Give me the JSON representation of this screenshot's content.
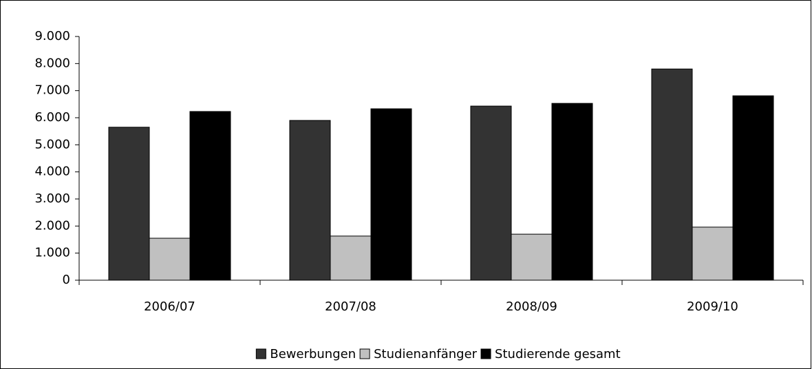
{
  "chart_data": {
    "type": "bar",
    "categories": [
      "2006/07",
      "2007/08",
      "2008/09",
      "2009/10"
    ],
    "series": [
      {
        "name": "Bewerbungen",
        "color": "#333333",
        "values": [
          5650,
          5900,
          6430,
          7800
        ]
      },
      {
        "name": "Studienanfänger",
        "color": "#c0c0c0",
        "values": [
          1550,
          1630,
          1700,
          1960
        ]
      },
      {
        "name": "Studierende gesamt",
        "color": "#000000",
        "values": [
          6230,
          6330,
          6530,
          6810
        ]
      }
    ],
    "ylim": [
      0,
      9000
    ],
    "yticks": [
      0,
      {
        "value": 1000,
        "label": "1.000"
      },
      {
        "value": 2000,
        "label": "2.000"
      },
      {
        "value": 3000,
        "label": "3.000"
      },
      {
        "value": 4000,
        "label": "4.000"
      },
      {
        "value": 5000,
        "label": "5.000"
      },
      {
        "value": 6000,
        "label": "6.000"
      },
      {
        "value": 7000,
        "label": "7.000"
      },
      {
        "value": 8000,
        "label": "8.000"
      },
      {
        "value": 9000,
        "label": "9.000"
      }
    ],
    "grid": false,
    "legend": "bottom"
  }
}
